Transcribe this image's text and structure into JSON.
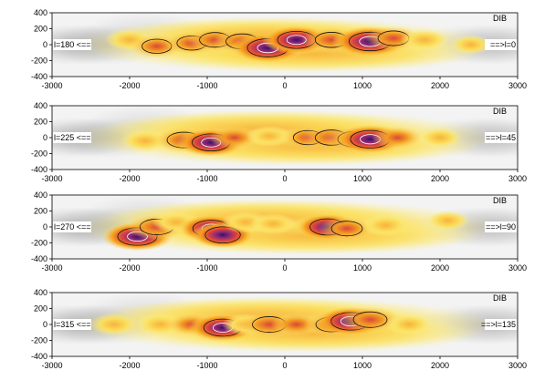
{
  "chart_data": [
    {
      "type": "heatmap",
      "title": "DIB",
      "left_label": "l=180 <==",
      "right_label": "==>l=0",
      "xlim": [
        -3000,
        3000
      ],
      "ylim": [
        -400,
        400
      ],
      "xticks": [
        -3000,
        -2000,
        -1000,
        0,
        1000,
        2000,
        3000
      ],
      "yticks": [
        400,
        200,
        0,
        -200,
        -400
      ],
      "clouds": [
        {
          "x": -2000,
          "y": 60,
          "value": 0.45
        },
        {
          "x": -1650,
          "y": -20,
          "value": 0.55
        },
        {
          "x": -1200,
          "y": 20,
          "value": 0.55
        },
        {
          "x": -900,
          "y": 60,
          "value": 0.6
        },
        {
          "x": -550,
          "y": 40,
          "value": 0.65
        },
        {
          "x": -220,
          "y": -40,
          "value": 0.95
        },
        {
          "x": 150,
          "y": 60,
          "value": 0.85
        },
        {
          "x": 600,
          "y": 60,
          "value": 0.65
        },
        {
          "x": 1100,
          "y": 40,
          "value": 1.0
        },
        {
          "x": 1400,
          "y": 80,
          "value": 0.6
        },
        {
          "x": 1800,
          "y": 60,
          "value": 0.45
        },
        {
          "x": 2400,
          "y": 0,
          "value": 0.3
        }
      ]
    },
    {
      "type": "heatmap",
      "title": "DIB",
      "left_label": "l=225 <==",
      "right_label": "==>l=45",
      "xlim": [
        -3000,
        3000
      ],
      "ylim": [
        -400,
        400
      ],
      "xticks": [
        -3000,
        -2000,
        -1000,
        0,
        1000,
        2000,
        3000
      ],
      "yticks": [
        400,
        200,
        0,
        -200,
        -400
      ],
      "clouds": [
        {
          "x": -1800,
          "y": -40,
          "value": 0.45
        },
        {
          "x": -1300,
          "y": -30,
          "value": 0.7
        },
        {
          "x": -950,
          "y": -60,
          "value": 0.85
        },
        {
          "x": -650,
          "y": 0,
          "value": 0.5
        },
        {
          "x": -200,
          "y": 20,
          "value": 0.4
        },
        {
          "x": 300,
          "y": 0,
          "value": 0.55
        },
        {
          "x": 600,
          "y": 0,
          "value": 0.65
        },
        {
          "x": 900,
          "y": -20,
          "value": 0.7
        },
        {
          "x": 1100,
          "y": -20,
          "value": 0.9
        },
        {
          "x": 1450,
          "y": 0,
          "value": 0.5
        },
        {
          "x": 2000,
          "y": 0,
          "value": 0.35
        }
      ]
    },
    {
      "type": "heatmap",
      "title": "DIB",
      "left_label": "l=270 <==",
      "right_label": "==>l=90",
      "xlim": [
        -3000,
        3000
      ],
      "ylim": [
        -400,
        400
      ],
      "xticks": [
        -3000,
        -2000,
        -1000,
        0,
        1000,
        2000,
        3000
      ],
      "yticks": [
        400,
        200,
        0,
        -200,
        -400
      ],
      "clouds": [
        {
          "x": -1900,
          "y": -120,
          "value": 0.9
        },
        {
          "x": -1650,
          "y": 0,
          "value": 0.7
        },
        {
          "x": -1400,
          "y": 60,
          "value": 0.45
        },
        {
          "x": -950,
          "y": -20,
          "value": 0.8
        },
        {
          "x": -800,
          "y": -100,
          "value": 0.75
        },
        {
          "x": -500,
          "y": 60,
          "value": 0.45
        },
        {
          "x": -150,
          "y": 40,
          "value": 0.4
        },
        {
          "x": 550,
          "y": 0,
          "value": 0.75
        },
        {
          "x": 800,
          "y": -20,
          "value": 0.6
        },
        {
          "x": 1300,
          "y": 20,
          "value": 0.45
        },
        {
          "x": 2100,
          "y": 80,
          "value": 0.35
        }
      ]
    },
    {
      "type": "heatmap",
      "title": "DIB",
      "left_label": "l=315 <==",
      "right_label": "==>l=135",
      "xlim": [
        -3000,
        3000
      ],
      "ylim": [
        -400,
        400
      ],
      "xticks": [
        -3000,
        -2000,
        -1000,
        0,
        1000,
        2000,
        3000
      ],
      "yticks": [
        400,
        200,
        0,
        -200,
        -400
      ],
      "clouds": [
        {
          "x": -2200,
          "y": 0,
          "value": 0.45
        },
        {
          "x": -1600,
          "y": 0,
          "value": 0.45
        },
        {
          "x": -1200,
          "y": 0,
          "value": 0.5
        },
        {
          "x": -800,
          "y": -40,
          "value": 0.85
        },
        {
          "x": -500,
          "y": 0,
          "value": 0.45
        },
        {
          "x": -200,
          "y": 0,
          "value": 0.7
        },
        {
          "x": 150,
          "y": 0,
          "value": 0.5
        },
        {
          "x": 600,
          "y": 0,
          "value": 0.6
        },
        {
          "x": 850,
          "y": 40,
          "value": 0.9
        },
        {
          "x": 1100,
          "y": 60,
          "value": 0.7
        },
        {
          "x": 1600,
          "y": 0,
          "value": 0.4
        }
      ]
    }
  ]
}
